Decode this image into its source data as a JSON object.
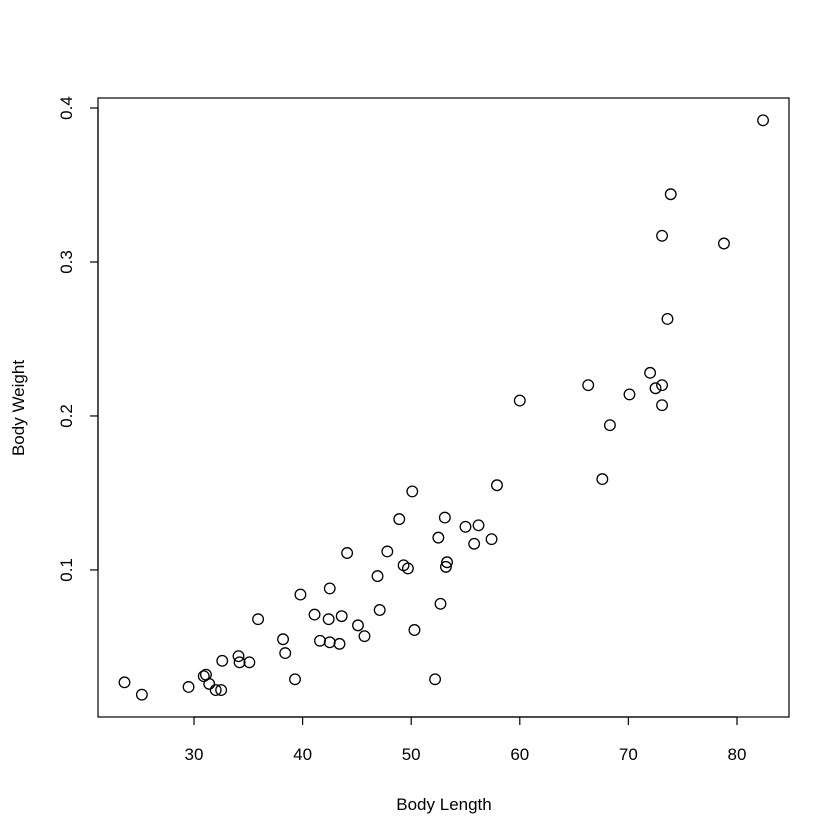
{
  "chart_data": {
    "type": "scatter",
    "x_label": "Body Length",
    "y_label": "Body Weight",
    "xlim": [
      21.16,
      84.79
    ],
    "ylim": [
      0.0045,
      0.4065
    ],
    "xticks": [
      30,
      40,
      50,
      60,
      70,
      80
    ],
    "yticks": [
      0.1,
      0.2,
      0.3,
      0.4
    ],
    "color": "#000000",
    "x": [
      23.6,
      25.2,
      29.5,
      30.9,
      31.1,
      31.4,
      32.0,
      32.5,
      32.6,
      34.1,
      34.2,
      35.1,
      35.9,
      38.2,
      38.4,
      39.3,
      39.8,
      41.1,
      41.6,
      42.4,
      42.5,
      42.5,
      43.4,
      43.6,
      44.1,
      45.1,
      45.7,
      46.9,
      47.1,
      47.8,
      48.9,
      49.3,
      49.7,
      50.1,
      50.3,
      52.2,
      52.5,
      52.7,
      53.1,
      53.2,
      53.3,
      55.0,
      55.8,
      56.2,
      57.4,
      57.9,
      60.0,
      66.3,
      67.6,
      68.3,
      70.1,
      72.0,
      72.5,
      73.1,
      73.1,
      73.6,
      73.9,
      73.1,
      78.8,
      82.4
    ],
    "values": [
      0.027,
      0.019,
      0.024,
      0.031,
      0.032,
      0.026,
      0.022,
      0.022,
      0.041,
      0.044,
      0.04,
      0.04,
      0.068,
      0.055,
      0.046,
      0.029,
      0.084,
      0.071,
      0.054,
      0.068,
      0.088,
      0.053,
      0.052,
      0.07,
      0.111,
      0.064,
      0.057,
      0.096,
      0.074,
      0.112,
      0.133,
      0.103,
      0.101,
      0.151,
      0.061,
      0.029,
      0.121,
      0.078,
      0.134,
      0.102,
      0.105,
      0.128,
      0.117,
      0.129,
      0.12,
      0.155,
      0.21,
      0.22,
      0.159,
      0.194,
      0.214,
      0.228,
      0.218,
      0.22,
      0.207,
      0.263,
      0.344,
      0.317,
      0.312,
      0.392
    ]
  }
}
